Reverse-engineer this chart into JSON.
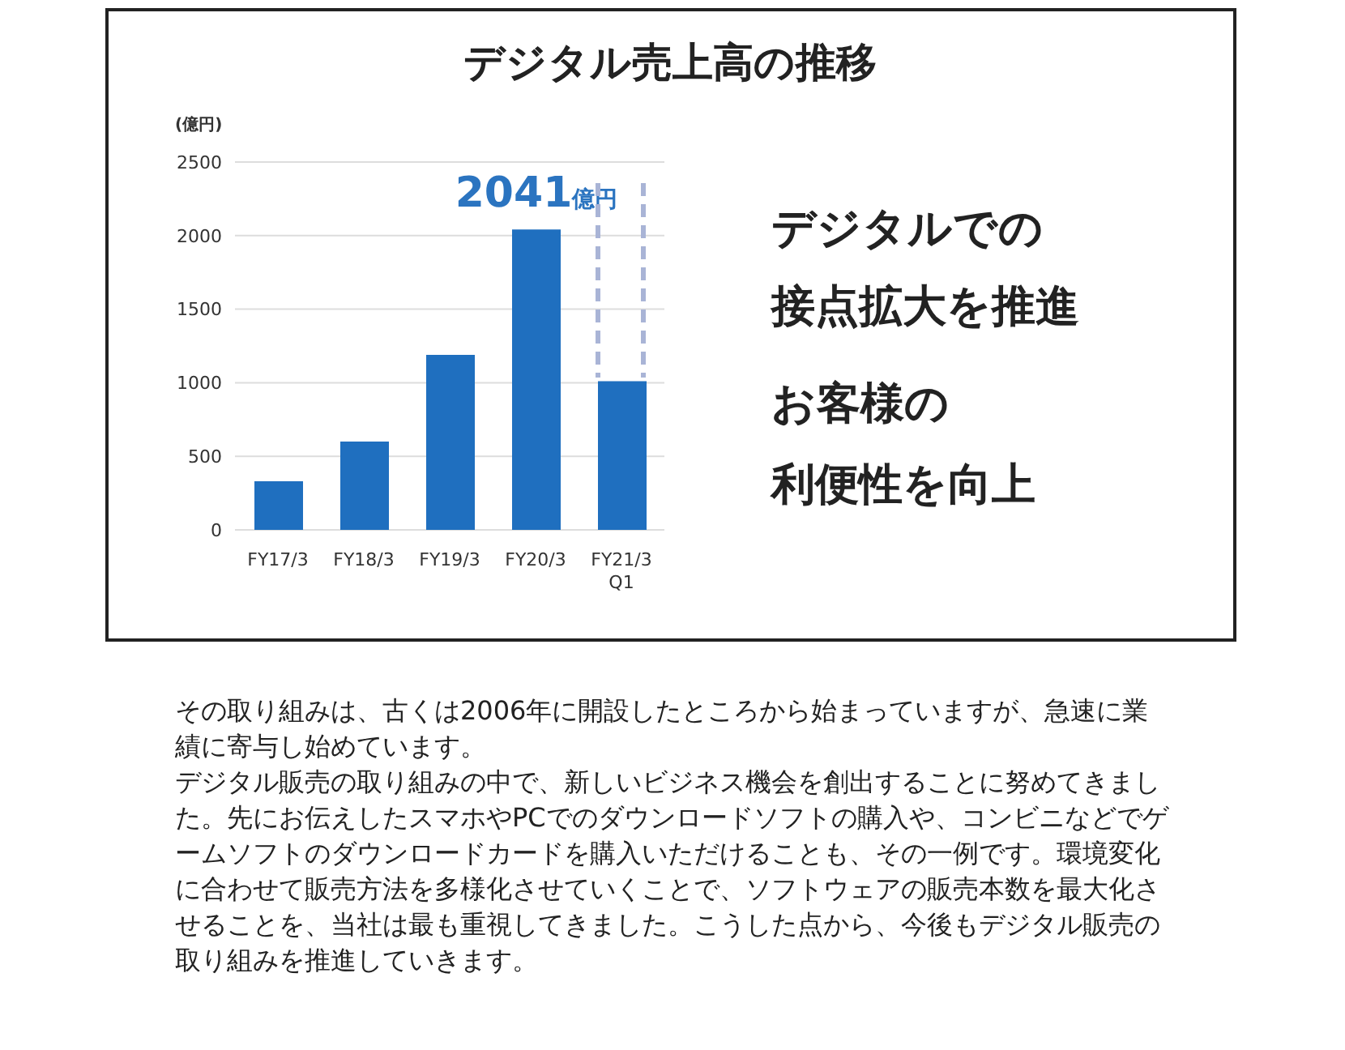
{
  "chart_data": {
    "type": "bar",
    "title": "デジタル売上高の推移",
    "ylabel": "(億円)",
    "categories": [
      "FY17/3",
      "FY18/3",
      "FY19/3",
      "FY20/3",
      "FY21/3\nQ1"
    ],
    "values": [
      330,
      600,
      1190,
      2041,
      1010
    ],
    "value_labels": [
      null,
      null,
      null,
      "2041億円",
      null
    ],
    "color": "#1f6fbf",
    "ylim": [
      0,
      2500
    ],
    "yticks": [
      0,
      500,
      1000,
      1500,
      2000,
      2500
    ],
    "grid": "y",
    "annotations": [
      "デジタルでの",
      "接点拡大を推進",
      "お客様の",
      "利便性を向上",
      "その取り組みは、古くは2006年に開設したところから始まっていますが、急速に業績に寄与し始めています。",
      "デジタル販売の取り組みの中で、新しいビジネス機会を創出することに努めてきました。先にお伝えしたスマホやPCでのダウンロードソフトの購入や、コンビニなどでゲームソフトのダウンロードカードを購入いただけることも、その一例です。環境変化に合わせて販売方法を多様化させていくことで、ソフトウェアの販売本数を最大化させることを、当社は最も重視してきました。こうした点から、今後もデジタル販売の取り組みを推進していきます。"
    ]
  }
}
